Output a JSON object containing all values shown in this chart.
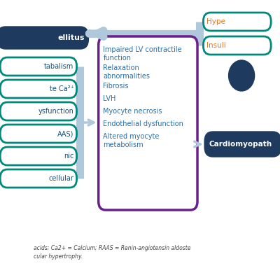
{
  "dm_label": "ellitus",
  "dm_color": "#1e3a5f",
  "left_items": [
    "tabalism",
    "te Ca²⁺",
    "ysfunction",
    "AAS)",
    "nic",
    "cellular"
  ],
  "left_border_color": "#00897b",
  "left_text_color": "#1a5276",
  "center_items": [
    "Impaired LV contractile\nfunction",
    "Relaxation\nabnormalities",
    "Fibrosis",
    "LVH",
    "Myocyte necrosis",
    "Endothelial dysfunction",
    "Altered myocyte\nmetabolism"
  ],
  "center_text_color": "#2e6da4",
  "center_border_color": "#6a1f8a",
  "right_top_items": [
    "Hype",
    "Insuli"
  ],
  "right_border_color": "#00897b",
  "right_text_color": "#e07820",
  "cardiomyopathy_label": "Cardiomyopath",
  "cardiomyopathy_color": "#1e3a5f",
  "arrow_color": "#b0c8dc",
  "footnote1": "acids; Ca2+ = Calcium; RAAS = Renin-angiotensin aldoste",
  "footnote2": "cular hypertrophy.",
  "footnote_color": "#444444",
  "bg_color": "#ffffff"
}
